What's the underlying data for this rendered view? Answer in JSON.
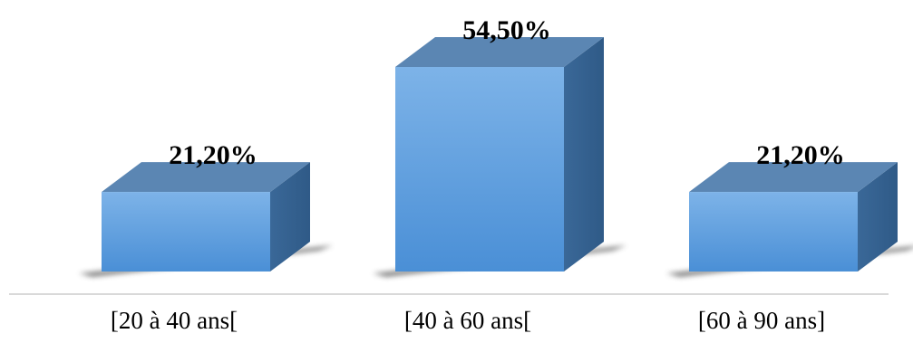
{
  "chart_data": {
    "type": "bar",
    "style": "3d-column",
    "categories": [
      "[20 à 40 ans[",
      "[40 à 60 ans[",
      "[60 à 90 ans]"
    ],
    "values": [
      21.2,
      54.5,
      21.2
    ],
    "value_labels": [
      "21,20%",
      "54,50%",
      "21,20%"
    ],
    "title": "",
    "xlabel": "",
    "ylabel": "",
    "legend": "none",
    "grid": false,
    "colors": {
      "front_light": "#7db3e8",
      "front_dark": "#4a8fd6",
      "top": "#5b86b3",
      "side": "#3a6898",
      "axis": "#d9d9d9",
      "shadow": "#6e6e6e",
      "text": "#000000"
    }
  }
}
